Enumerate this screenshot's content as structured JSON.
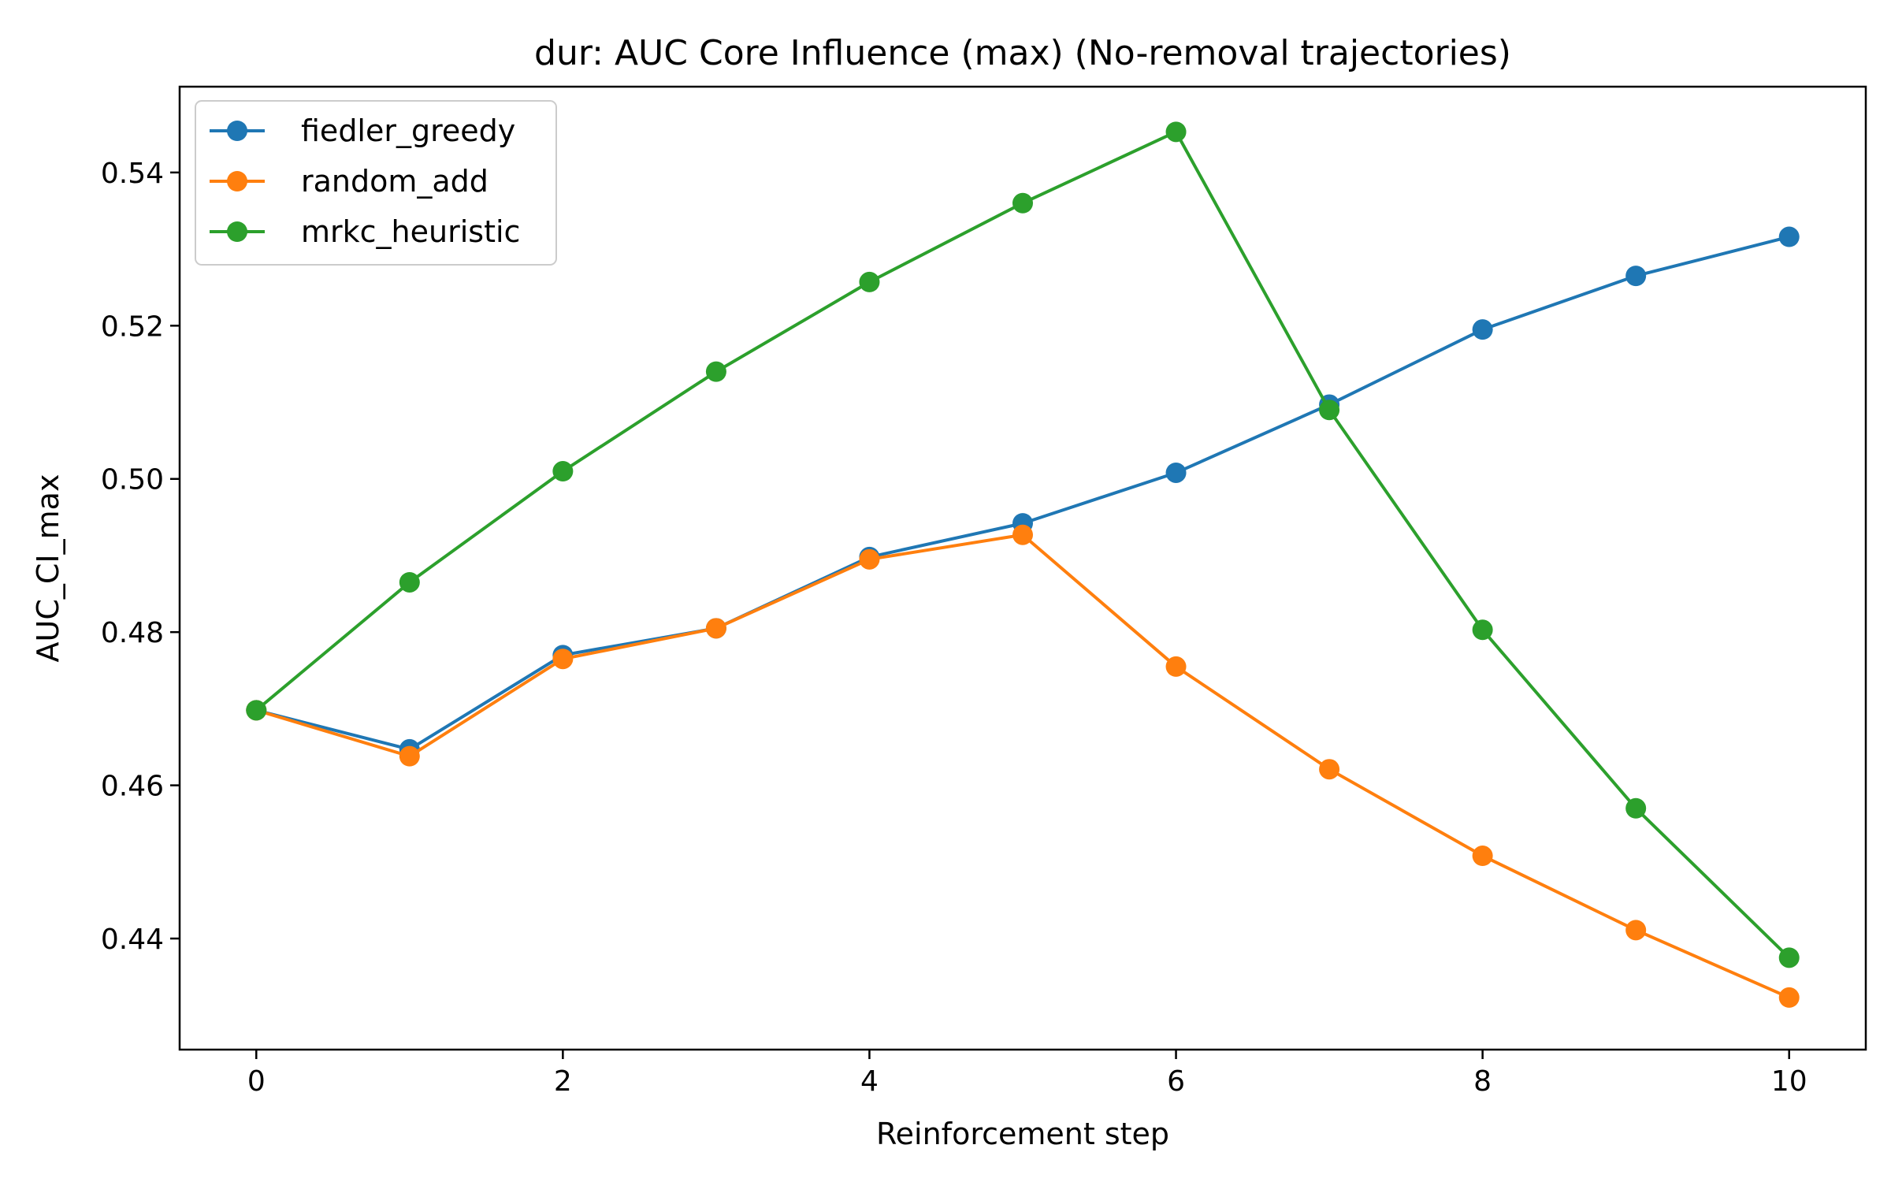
{
  "chart_data": {
    "type": "line",
    "title": "dur: AUC Core Influence (max) (No-removal trajectories)",
    "xlabel": "Reinforcement step",
    "ylabel": "AUC_CI_max",
    "x": [
      0,
      1,
      2,
      3,
      4,
      5,
      6,
      7,
      8,
      9,
      10
    ],
    "xlim": [
      -0.5,
      10.5
    ],
    "ylim": [
      0.4255,
      0.5512
    ],
    "xticks": [
      0,
      2,
      4,
      6,
      8,
      10
    ],
    "yticks": [
      0.44,
      0.46,
      0.48,
      0.5,
      0.52,
      0.54
    ],
    "xtick_labels": [
      "0",
      "2",
      "4",
      "6",
      "8",
      "10"
    ],
    "ytick_labels": [
      "0.44",
      "0.46",
      "0.48",
      "0.50",
      "0.52",
      "0.54"
    ],
    "grid": false,
    "legend_position": "upper-left",
    "series": [
      {
        "name": "fiedler_greedy",
        "color": "#1f77b4",
        "values": [
          0.4698,
          0.4647,
          0.477,
          0.4805,
          0.4898,
          0.4942,
          0.5008,
          0.5097,
          0.5195,
          0.5265,
          0.5316
        ]
      },
      {
        "name": "random_add",
        "color": "#ff7f0e",
        "values": [
          0.4698,
          0.4638,
          0.4765,
          0.4805,
          0.4895,
          0.4927,
          0.4755,
          0.4621,
          0.4508,
          0.4411,
          0.4323
        ]
      },
      {
        "name": "mrkc_heuristic",
        "color": "#2ca02c",
        "values": [
          0.4698,
          0.4865,
          0.501,
          0.514,
          0.5257,
          0.536,
          0.5453,
          0.509,
          0.4803,
          0.457,
          0.4375
        ]
      }
    ]
  }
}
